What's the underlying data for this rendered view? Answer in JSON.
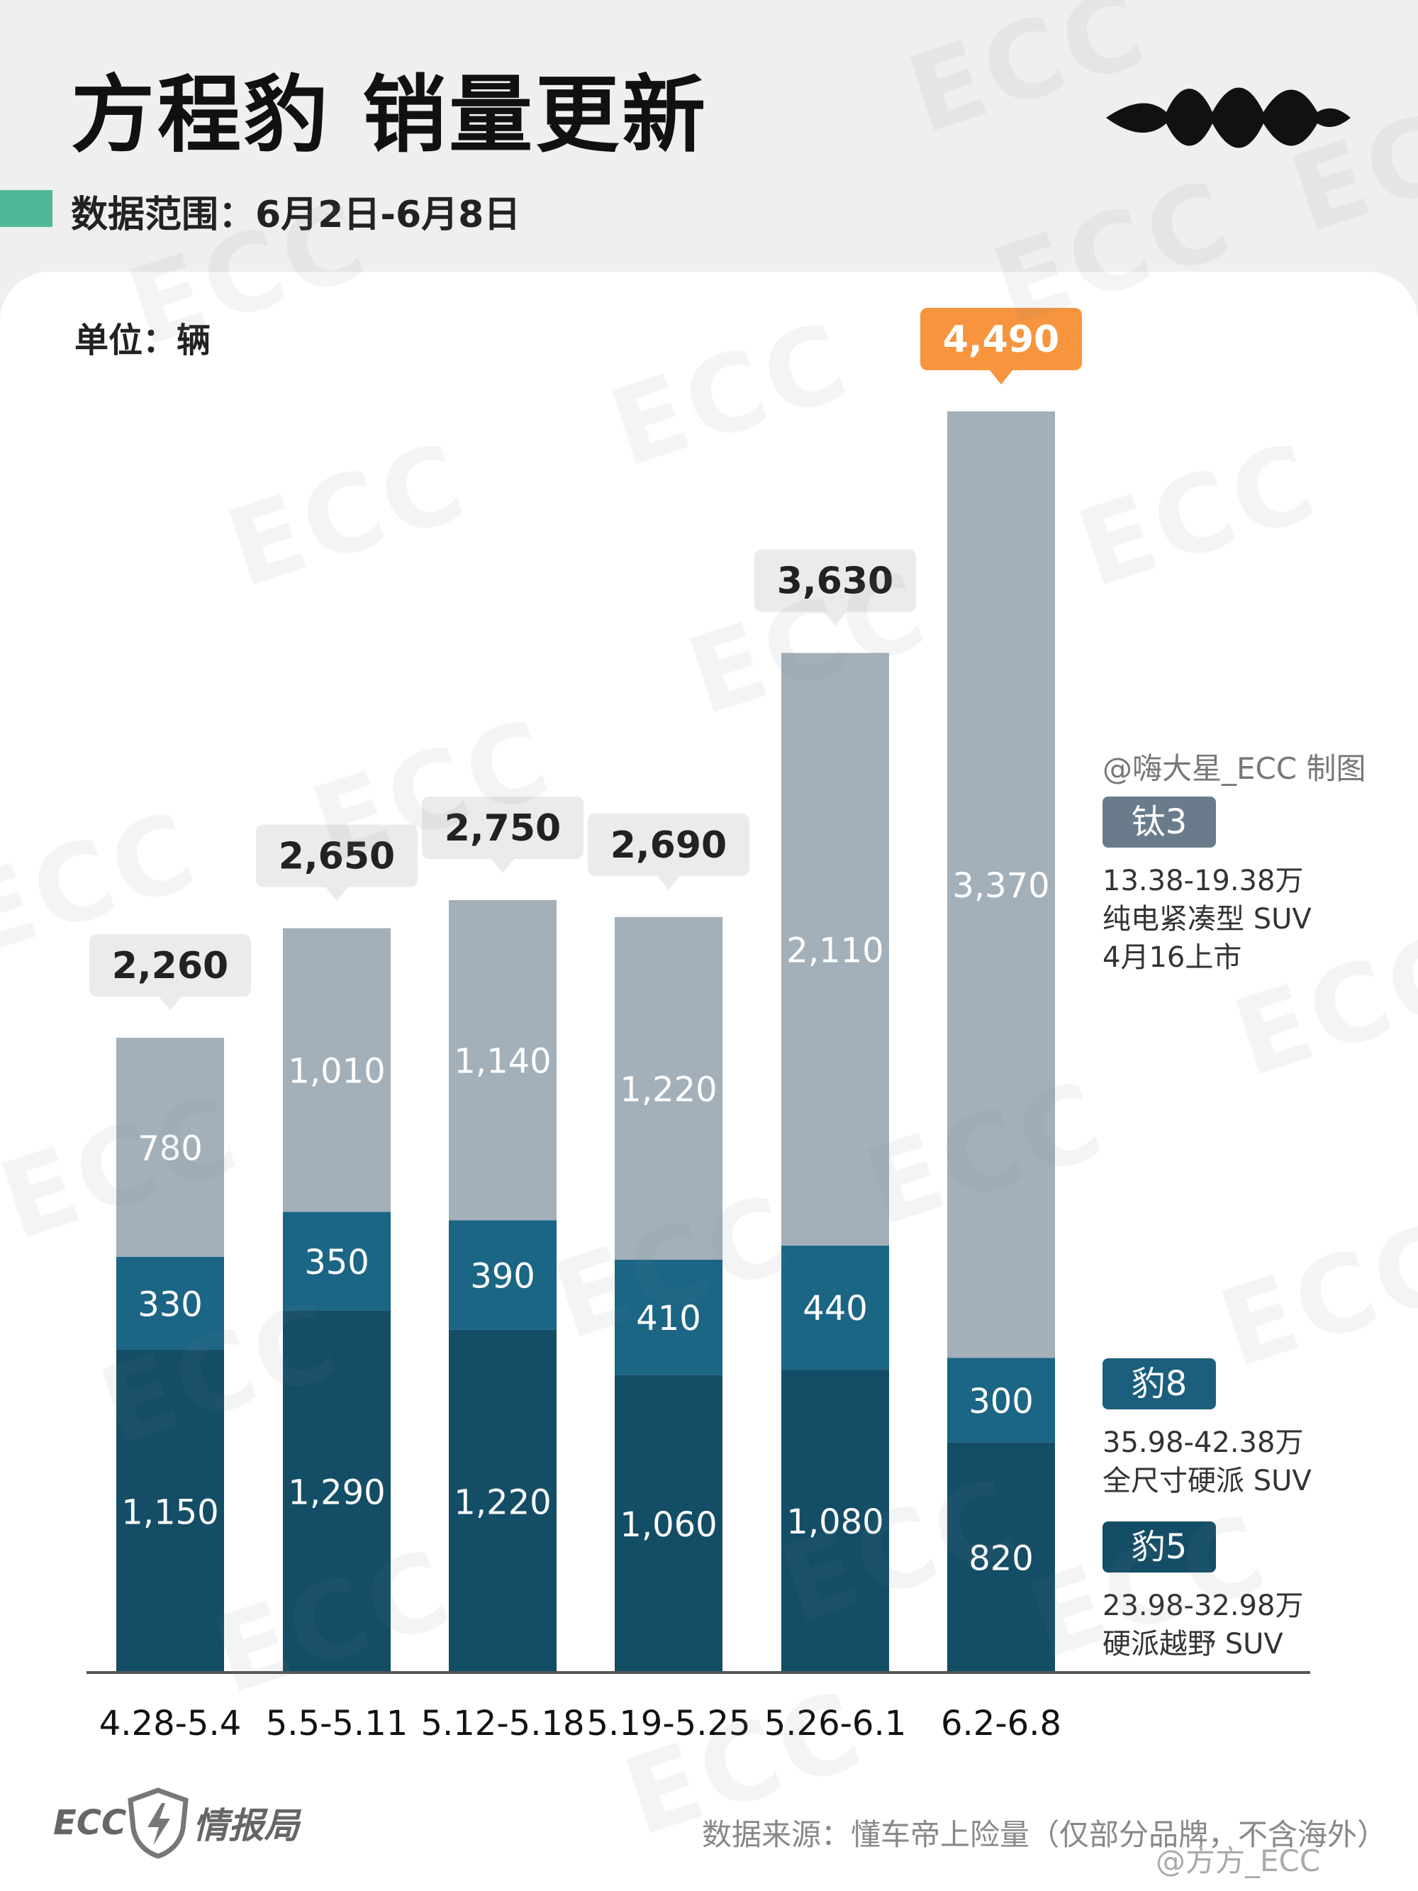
{
  "title": "方程豹 销量更新",
  "subtitle": "数据范围：6月2日-6月8日",
  "unit_label": "单位：辆",
  "credit": "@嗨大星_ECC 制图",
  "colors": {
    "tai3": "#a3afb9",
    "bao8": "#1b6585",
    "bao5": "#134d66",
    "total_bubble": "#ebebeb",
    "highlight_bubble": "#f7953e",
    "accent": "#4fb89a"
  },
  "legend": [
    {
      "tag": "钛3",
      "color": "#6a7c8b",
      "lines": [
        "13.38-19.38万",
        "纯电紧凑型 SUV",
        "4月16上市"
      ]
    },
    {
      "tag": "豹8",
      "color": "#1b5f7d",
      "lines": [
        "35.98-42.38万",
        "全尺寸硬派 SUV"
      ]
    },
    {
      "tag": "豹5",
      "color": "#134d66",
      "lines": [
        "23.98-32.98万",
        "硬派越野 SUV"
      ]
    }
  ],
  "chart_data": {
    "type": "bar",
    "stacked": true,
    "categories": [
      "4.28-5.4",
      "5.5-5.11",
      "5.12-5.18",
      "5.19-5.25",
      "5.26-6.1",
      "6.2-6.8"
    ],
    "series": [
      {
        "name": "豹5",
        "values": [
          1150,
          1290,
          1220,
          1060,
          1080,
          820
        ],
        "labels": [
          "1,150",
          "1,290",
          "1,220",
          "1,060",
          "1,080",
          "820"
        ]
      },
      {
        "name": "豹8",
        "values": [
          330,
          350,
          390,
          410,
          440,
          300
        ],
        "labels": [
          "330",
          "350",
          "390",
          "410",
          "440",
          "300"
        ]
      },
      {
        "name": "钛3",
        "values": [
          780,
          1010,
          1140,
          1220,
          2110,
          3370
        ],
        "labels": [
          "780",
          "1,010",
          "1,140",
          "1,220",
          "2,110",
          "3,370"
        ]
      }
    ],
    "totals": [
      2260,
      2650,
      2750,
      2690,
      3630,
      4490
    ],
    "total_labels": [
      "2,260",
      "2,650",
      "2,750",
      "2,690",
      "3,630",
      "4,490"
    ],
    "highlight_index": 5,
    "ylim": [
      0,
      4490
    ]
  },
  "watermark": "ECC",
  "footer": {
    "logo_text": "ECC",
    "logo_name": "情报局",
    "source": "数据来源：懂车帝上险量（仅部分品牌，不含海外）",
    "handle": "@方方_ECC"
  }
}
